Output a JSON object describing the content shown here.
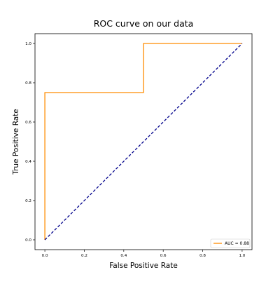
{
  "chart_data": {
    "type": "line",
    "title": "ROC curve on our data",
    "xlabel": "False Positive Rate",
    "ylabel": "True Positive Rate",
    "xlim": [
      -0.05,
      1.05
    ],
    "ylim": [
      -0.05,
      1.05
    ],
    "xticks": [
      "0.0",
      "0.2",
      "0.4",
      "0.6",
      "0.8",
      "1.0"
    ],
    "yticks": [
      "0.0",
      "0.2",
      "0.4",
      "0.6",
      "0.8",
      "1.0"
    ],
    "grid": false,
    "legend_position": "lower right",
    "series": [
      {
        "name": "AUC = 0.88",
        "color": "#ff8c00",
        "style": "solid",
        "x": [
          0.0,
          0.0,
          0.5,
          0.5,
          1.0
        ],
        "y": [
          0.0,
          0.75,
          0.75,
          1.0,
          1.0
        ]
      },
      {
        "color": "#00008b",
        "style": "dashed",
        "x": [
          0.0,
          1.0
        ],
        "y": [
          0.0,
          1.0
        ]
      }
    ]
  }
}
